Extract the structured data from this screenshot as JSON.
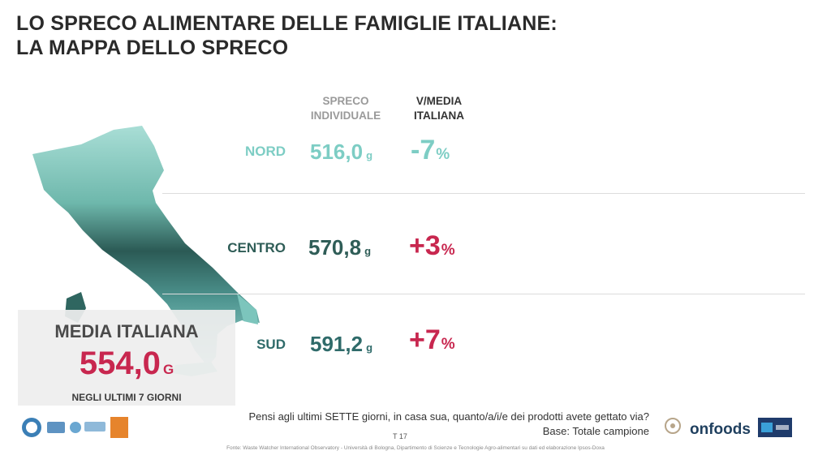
{
  "title": {
    "line1": "LO SPRECO ALIMENTARE DELLE FAMIGLIE ITALIANE:",
    "line2": "LA MAPPA DELLO SPRECO"
  },
  "headers": {
    "col1": [
      "SPRECO",
      "INDIVIDUALE"
    ],
    "col2": [
      "V/MEDIA",
      "ITALIANA"
    ]
  },
  "rows": [
    {
      "region": "NORD",
      "value": "516,0",
      "unit": "g",
      "delta": "-7",
      "delta_unit": "%"
    },
    {
      "region": "CENTRO",
      "value": "570,8",
      "unit": "g",
      "delta": "+3",
      "delta_unit": "%"
    },
    {
      "region": "SUD",
      "value": "591,2",
      "unit": "g",
      "delta": "+7",
      "delta_unit": "%"
    }
  ],
  "media": {
    "title": "MEDIA ITALIANA",
    "value": "554,0",
    "unit": "G",
    "subtitle": "NEGLI ULTIMI 7 GIORNI"
  },
  "footer": {
    "question": "Pensi agli ultimi SETTE giorni, in casa sua, quanto/a/i/e dei prodotti avete gettato via?",
    "base": "Base: Totale campione",
    "page": "T 17",
    "source": "Fonte: Waste Watcher International Observatory - Università di Bologna, Dipartimento di Scienze e Tecnologie Agro-alimentari su dati ed elaborazione Ipsos-Doxa",
    "logo_onfoods": "onfoods"
  },
  "colors": {
    "nord": "#7dcdc4",
    "centro": "#2f5d57",
    "sud": "#2f6b6a",
    "positive": "#c8274f",
    "negative": "#7dcdc4"
  },
  "icons": [
    "italy-map-icon",
    "partner-logo-icons",
    "onfoods-logo-icon",
    "ipsos-doxa-logo-icon"
  ]
}
